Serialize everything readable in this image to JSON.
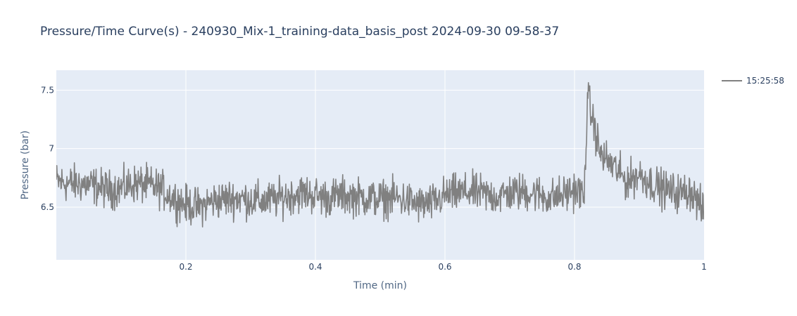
{
  "chart_data": {
    "type": "line",
    "title": "Pressure/Time Curve(s) - 240930_Mix-1_training-data_basis_post 2024-09-30 09-58-37",
    "xlabel": "Time (min)",
    "ylabel": "Pressure (bar)",
    "xlim": [
      0,
      1
    ],
    "ylim": [
      6.05,
      7.67
    ],
    "x_ticks": [
      0.2,
      0.4,
      0.6,
      0.8,
      1
    ],
    "x_tick_labels": [
      "0.2",
      "0.4",
      "0.6",
      "0.8",
      "1"
    ],
    "y_ticks": [
      6.5,
      7,
      7.5
    ],
    "y_tick_labels": [
      "6.5",
      "7",
      "7.5"
    ],
    "grid": true,
    "legend_position": "right",
    "plot_background": "#e5ecf6",
    "series": [
      {
        "name": "15:25:58",
        "color": "#808080",
        "x": [
          0.0,
          0.02,
          0.04,
          0.06,
          0.08,
          0.1,
          0.12,
          0.14,
          0.16,
          0.18,
          0.2,
          0.22,
          0.24,
          0.26,
          0.28,
          0.3,
          0.32,
          0.34,
          0.36,
          0.38,
          0.4,
          0.42,
          0.44,
          0.46,
          0.48,
          0.5,
          0.52,
          0.54,
          0.56,
          0.58,
          0.6,
          0.62,
          0.64,
          0.66,
          0.68,
          0.7,
          0.72,
          0.74,
          0.76,
          0.78,
          0.8,
          0.81,
          0.815,
          0.82,
          0.83,
          0.84,
          0.86,
          0.88,
          0.9,
          0.92,
          0.94,
          0.96,
          0.98,
          1.0
        ],
        "values": [
          6.72,
          6.7,
          6.7,
          6.68,
          6.65,
          6.66,
          6.7,
          6.69,
          6.66,
          6.58,
          6.52,
          6.5,
          6.55,
          6.57,
          6.58,
          6.56,
          6.55,
          6.57,
          6.6,
          6.62,
          6.6,
          6.58,
          6.6,
          6.59,
          6.58,
          6.57,
          6.58,
          6.56,
          6.52,
          6.53,
          6.6,
          6.62,
          6.63,
          6.61,
          6.59,
          6.62,
          6.63,
          6.62,
          6.58,
          6.6,
          6.65,
          6.62,
          6.58,
          7.45,
          7.2,
          6.95,
          6.85,
          6.72,
          6.78,
          6.7,
          6.65,
          6.62,
          6.64,
          6.45
        ]
      }
    ]
  }
}
